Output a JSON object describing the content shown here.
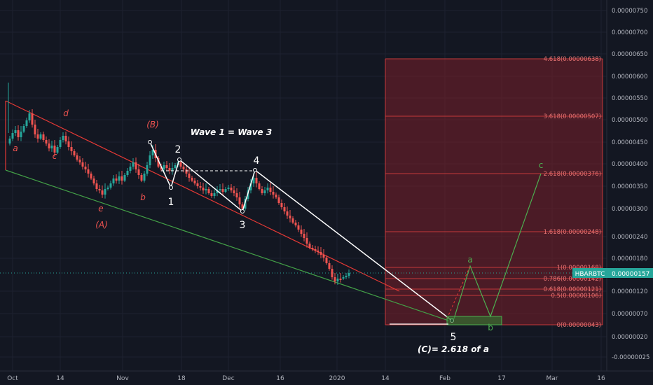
{
  "chart_data": {
    "type": "candlestick",
    "symbol": "HBARBTC",
    "last_price": "0.00000157",
    "accent_colors": {
      "up": "#26a69a",
      "down": "#ef5350",
      "fib": "#c53a3a",
      "symbol_label_bg": "#26a69a"
    },
    "y_ticks": [
      "0.00000750",
      "0.00000700",
      "0.00000650",
      "0.00000600",
      "0.00000550",
      "0.00000500",
      "0.00000450",
      "0.00000400",
      "0.00000350",
      "0.00000300",
      "0.00000240",
      "0.00000180",
      "0.00000120",
      "0.00000070",
      "0.00000020",
      "-0.00000025"
    ],
    "x_ticks": [
      "Oct",
      "14",
      "Nov",
      "18",
      "Dec",
      "16",
      "2020",
      "14",
      "Feb",
      "17",
      "Mar",
      "16"
    ],
    "fib_levels": [
      {
        "ratio": "4.618",
        "value": "0.00000638"
      },
      {
        "ratio": "3.618",
        "value": "0.00000507"
      },
      {
        "ratio": "2.618",
        "value": "0.00000376"
      },
      {
        "ratio": "1.618",
        "value": "0.00000248"
      },
      {
        "ratio": "1",
        "value": "0.00000168"
      },
      {
        "ratio": "0.786",
        "value": "0.00000142"
      },
      {
        "ratio": "0.618",
        "value": "0.00000121"
      },
      {
        "ratio": "0.5",
        "value": "0.00000106"
      },
      {
        "ratio": "0",
        "value": "0.00000043"
      }
    ],
    "annotations": [
      {
        "text": "Wave 1 = Wave 3",
        "color": "#ffffff",
        "style": "bold-italic"
      },
      {
        "text": "(C)= 2.618 of a",
        "color": "#ffffff",
        "style": "bold-italic"
      },
      {
        "text": "(B)",
        "color": "#ef5350"
      },
      {
        "text": "(A)",
        "color": "#ef5350"
      },
      {
        "text": "a",
        "color": "#ef5350"
      },
      {
        "text": "b",
        "color": "#ef5350"
      },
      {
        "text": "c",
        "color": "#ef5350"
      },
      {
        "text": "d",
        "color": "#ef5350"
      },
      {
        "text": "e",
        "color": "#ef5350"
      },
      {
        "text": "1",
        "color": "#ffffff"
      },
      {
        "text": "2",
        "color": "#ffffff"
      },
      {
        "text": "3",
        "color": "#ffffff"
      },
      {
        "text": "4",
        "color": "#ffffff"
      },
      {
        "text": "5",
        "color": "#ffffff"
      },
      {
        "text": "a",
        "color": "#4caf50"
      },
      {
        "text": "b",
        "color": "#4caf50"
      },
      {
        "text": "c",
        "color": "#4caf50"
      }
    ]
  }
}
